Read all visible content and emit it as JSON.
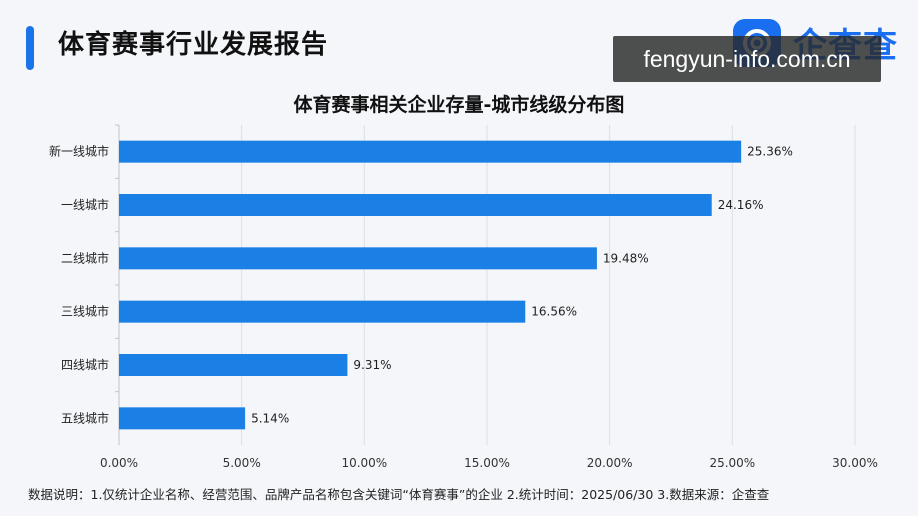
{
  "header": {
    "report_title": "体育赛事行业发展报告",
    "brand_name": "企查查",
    "watermark": "fengyun-info.com.cn",
    "accent_color": "#1a73e8"
  },
  "chart_data": {
    "type": "bar",
    "orientation": "horizontal",
    "title": "体育赛事相关企业存量-城市线级分布图",
    "categories": [
      "新一线城市",
      "一线城市",
      "二线城市",
      "三线城市",
      "四线城市",
      "五线城市"
    ],
    "values": [
      25.36,
      24.16,
      19.48,
      16.56,
      9.31,
      5.14
    ],
    "data_labels": [
      "25.36%",
      "24.16%",
      "19.48%",
      "16.56%",
      "9.31%",
      "5.14%"
    ],
    "xlim": [
      0,
      30
    ],
    "x_ticks": [
      "0.00%",
      "5.00%",
      "10.00%",
      "15.00%",
      "20.00%",
      "25.00%",
      "30.00%"
    ],
    "grid": true,
    "bar_color": "#1a80e6",
    "xlabel": "",
    "ylabel": ""
  },
  "footnote": "数据说明：1.仅统计企业名称、经营范围、品牌产品名称包含关键词“体育赛事”的企业  2.统计时间：2025/06/30   3.数据来源：企查查"
}
